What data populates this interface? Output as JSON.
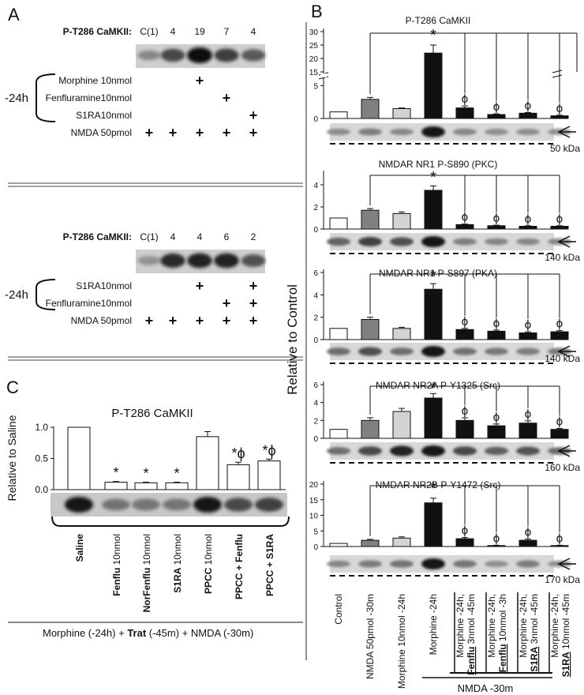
{
  "panelA": {
    "letter": "A",
    "blot1": {
      "header": "P-T286 CaMKII:",
      "lanes": [
        "C(1)",
        "4",
        "19",
        "7",
        "4"
      ],
      "time": "-24h",
      "rows": [
        {
          "label": "Morphine 10nmol",
          "plus": [
            2
          ]
        },
        {
          "label": "Fenfluramine10nmol",
          "plus": [
            3
          ]
        },
        {
          "label": "S1RA10nmol",
          "plus": [
            4
          ]
        },
        {
          "label": "NMDA 50pmol",
          "plus": [
            0,
            1,
            2,
            3,
            4
          ]
        }
      ],
      "bands": [
        0.35,
        0.7,
        1.0,
        0.75,
        0.6
      ]
    },
    "blot2": {
      "header": "P-T286 CaMKII:",
      "lanes": [
        "C(1)",
        "4",
        "4",
        "6",
        "2"
      ],
      "time": "-24h",
      "rows": [
        {
          "label": "S1RA10nmol",
          "plus": [
            2,
            4
          ]
        },
        {
          "label": "Fenfluramine10nmol",
          "plus": [
            3,
            4
          ]
        },
        {
          "label": "NMDA 50pmol",
          "plus": [
            0,
            1,
            2,
            3,
            4
          ]
        }
      ],
      "bands": [
        0.3,
        0.85,
        0.9,
        0.9,
        0.65
      ]
    }
  },
  "panelB": {
    "letter": "B",
    "ylabel": "Relative to Control",
    "xlabels": [
      "Control",
      "NMDA 50pmol -30m",
      "Morphine 10nmol -24h",
      "Morphine -24h"
    ],
    "grouped_labels": [
      {
        "l1": "Morphine -24h,",
        "bold": "Fenflu",
        "rest": " 3nmol -45m"
      },
      {
        "l1": "Morphine -24h,",
        "bold": "Fenflu",
        "rest": " 10nmol -3h"
      },
      {
        "l1": "Morphine -24h,",
        "bold": "S1RA",
        "rest": " 3nmol -45m"
      },
      {
        "l1": "Morphine -24h,",
        "bold": "S1RA",
        "rest": " 10nmol -45m"
      }
    ],
    "bottom_label": "NMDA -30m"
  },
  "panelC": {
    "letter": "C",
    "categories": [
      "Saline",
      "Fenflu",
      "NorFenflu",
      "S1RA",
      "PPCC",
      "PPCC + Fenflu",
      "PPCC + S1RA"
    ],
    "dose": [
      "",
      "10nmol",
      "10nmol",
      "10nmol",
      "10nmol",
      "",
      ""
    ],
    "footer_pre": "Morphine (-24h) + ",
    "footer_bold": "Trat",
    "footer_post": " (-45m) + NMDA (-30m)"
  },
  "colors": {
    "control": "#ffffff",
    "nmda": "#808080",
    "morphine10": "#d3d3d3",
    "black": "#111111"
  },
  "chart_data": [
    {
      "type": "bar",
      "title": "P-T286 CaMKII",
      "categories": [
        "Control",
        "NMDA 50pmol -30m",
        "Morphine 10nmol -24h",
        "Morphine -24h",
        "Morphine -24h, Fenflu 3nmol -45m",
        "Morphine -24h, Fenflu 10nmol -3h",
        "Morphine -24h, S1RA 3nmol -45m",
        "Morphine -24h, S1RA 10nmol -45m"
      ],
      "values": [
        1.0,
        2.9,
        1.5,
        22,
        1.6,
        0.6,
        0.8,
        0.4
      ],
      "errors": [
        0,
        0.3,
        0.1,
        3,
        0.3,
        0.1,
        0.1,
        0.1
      ],
      "axis_break": [
        6,
        15
      ],
      "yticks": [
        0,
        5,
        15,
        20,
        25,
        30
      ],
      "ylim": [
        0,
        30
      ],
      "marker": "50 kDa",
      "marks": [
        "",
        "",
        "",
        "*",
        "ϕ",
        "ϕ",
        "ϕ",
        "ϕ"
      ]
    },
    {
      "type": "bar",
      "title": "NMDAR NR1 P-S890 (PKC)",
      "categories": [
        "Control",
        "NMDA 50pmol -30m",
        "Morphine 10nmol -24h",
        "Morphine -24h",
        "Morphine -24h, Fenflu 3nmol -45m",
        "Morphine -24h, Fenflu 10nmol -3h",
        "Morphine -24h, S1RA 3nmol -45m",
        "Morphine -24h, S1RA 10nmol -45m"
      ],
      "values": [
        1.0,
        1.7,
        1.4,
        3.5,
        0.4,
        0.3,
        0.25,
        0.25
      ],
      "errors": [
        0,
        0.15,
        0.15,
        0.4,
        0.05,
        0.05,
        0.05,
        0.05
      ],
      "yticks": [
        0,
        2,
        4
      ],
      "ylim": [
        0,
        5
      ],
      "marker": "140 kDa",
      "marks": [
        "",
        "",
        "",
        "*",
        "ϕ",
        "ϕ",
        "ϕ",
        "ϕ"
      ]
    },
    {
      "type": "bar",
      "title": "NMDAR NR1 P-S897 (PKA)",
      "categories": [
        "Control",
        "NMDA 50pmol -30m",
        "Morphine 10nmol -24h",
        "Morphine -24h",
        "Morphine -24h, Fenflu 3nmol -45m",
        "Morphine -24h, Fenflu 10nmol -3h",
        "Morphine -24h, S1RA 3nmol -45m",
        "Morphine -24h, S1RA 10nmol -45m"
      ],
      "values": [
        1.0,
        1.8,
        1.0,
        4.5,
        0.9,
        0.75,
        0.6,
        0.7
      ],
      "errors": [
        0,
        0.2,
        0.1,
        0.5,
        0.1,
        0.1,
        0.1,
        0.1
      ],
      "yticks": [
        0,
        2,
        4,
        6
      ],
      "ylim": [
        0,
        6
      ],
      "marker": "140 kDa",
      "marks": [
        "",
        "",
        "",
        "*",
        "ϕ",
        "ϕ",
        "ϕ",
        "ϕ"
      ]
    },
    {
      "type": "bar",
      "title": "NMDAR NR2A P-Y1325 (Src)",
      "categories": [
        "Control",
        "NMDA 50pmol -30m",
        "Morphine 10nmol -24h",
        "Morphine -24h",
        "Morphine -24h, Fenflu 3nmol -45m",
        "Morphine -24h, Fenflu 10nmol -3h",
        "Morphine -24h, S1RA 3nmol -45m",
        "Morphine -24h, S1RA 10nmol -45m"
      ],
      "values": [
        1.0,
        2.0,
        3.0,
        4.5,
        2.0,
        1.4,
        1.7,
        1.0
      ],
      "errors": [
        0,
        0.3,
        0.35,
        0.5,
        0.3,
        0.2,
        0.25,
        0.1
      ],
      "yticks": [
        0,
        2,
        4,
        6
      ],
      "ylim": [
        0,
        6
      ],
      "marker": "160 kDa",
      "marks": [
        "",
        "",
        "",
        "*",
        "ϕ",
        "ϕ",
        "ϕ",
        "ϕ"
      ]
    },
    {
      "type": "bar",
      "title": "NMDAR NR2B P-Y1472 (Src)",
      "categories": [
        "Control",
        "NMDA 50pmol -30m",
        "Morphine 10nmol -24h",
        "Morphine -24h",
        "Morphine -24h, Fenflu 3nmol -45m",
        "Morphine -24h, Fenflu 10nmol -3h",
        "Morphine -24h, S1RA 3nmol -45m",
        "Morphine -24h, S1RA 10nmol -45m"
      ],
      "values": [
        1.0,
        2.0,
        2.7,
        14,
        2.5,
        0.3,
        2.0,
        0.3
      ],
      "errors": [
        0,
        0.3,
        0.4,
        1.5,
        0.4,
        0.1,
        0.4,
        0.1
      ],
      "yticks": [
        0,
        5,
        10,
        15,
        20
      ],
      "ylim": [
        0,
        20
      ],
      "marker": "170 kDa",
      "marks": [
        "",
        "",
        "",
        "*",
        "ϕ",
        "ϕ",
        "ϕ",
        "ϕ"
      ]
    },
    {
      "type": "bar",
      "title": "P-T286 CaMKII",
      "ylabel": "Relative to Saline",
      "categories": [
        "Saline",
        "Fenflu 10nmol",
        "NorFenflu 10nmol",
        "S1RA 10nmol",
        "PPCC 10nmol",
        "PPCC + Fenflu",
        "PPCC + S1RA"
      ],
      "values": [
        1.0,
        0.12,
        0.11,
        0.11,
        0.85,
        0.4,
        0.46
      ],
      "errors": [
        0,
        0.01,
        0.01,
        0.01,
        0.08,
        0.04,
        0.03
      ],
      "yticks": [
        0.0,
        0.5,
        1.0
      ],
      "ytick_labels": [
        "0.0",
        "0.5",
        "1.0"
      ],
      "ylim": [
        0,
        1.0
      ],
      "marks": [
        "",
        "*",
        "*",
        "*",
        "",
        "*ϕ",
        "*ϕ"
      ]
    }
  ]
}
